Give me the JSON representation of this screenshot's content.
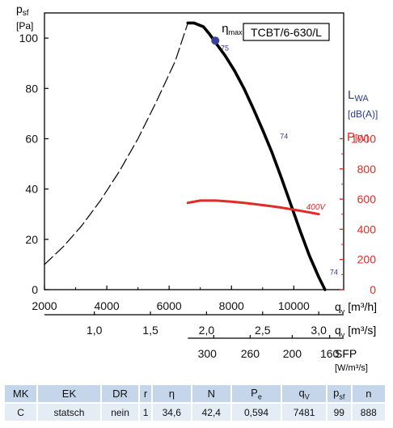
{
  "chart_data": {
    "type": "line",
    "model_label": "TCBT/6-630/L",
    "y_axis": {
      "symbol": "p",
      "subscript": "sf",
      "unit": "[Pa]",
      "range": [
        0,
        110
      ],
      "ticks": [
        "0",
        "20",
        "40",
        "60",
        "80",
        "100"
      ]
    },
    "x_axis_flow_m3h": {
      "symbol": "q",
      "subscript": "v",
      "unit": "[m³/h]",
      "range": [
        2000,
        11600
      ],
      "ticks": [
        "2000",
        "4000",
        "6000",
        "8000",
        "10000"
      ]
    },
    "x_axis_flow_m3s": {
      "symbol": "q",
      "subscript": "v",
      "unit": "[m³/s]",
      "ticks": [
        {
          "label": "1,0",
          "value": 1.0
        },
        {
          "label": "1,5",
          "value": 1.5
        },
        {
          "label": "2,0",
          "value": 2.0
        },
        {
          "label": "2,5",
          "value": 2.5
        },
        {
          "label": "3,0",
          "value": 3.0
        }
      ]
    },
    "sfp_axis": {
      "label": "SFP",
      "unit": "[W/m³/s]",
      "ticks": [
        {
          "label": "300",
          "value": 300
        },
        {
          "label": "260",
          "value": 260
        },
        {
          "label": "200",
          "value": 200
        },
        {
          "label": "160",
          "value": 160
        }
      ],
      "tick_positions_m3h": [
        7430,
        8600,
        9950,
        11150
      ]
    },
    "sound_axis": {
      "label": "L",
      "subscript": "WA",
      "unit": "[dB(A)]"
    },
    "power_axis": {
      "label": "P",
      "unit": "[W]",
      "range": [
        0,
        1000
      ],
      "ticks": [
        "0",
        "200",
        "400",
        "600",
        "800",
        "1000"
      ]
    },
    "series": [
      {
        "name": "fan curve",
        "color": "#000000",
        "x": [
          6600,
          6800,
          7100,
          7300,
          7500,
          7800,
          8100,
          8400,
          8700,
          9000,
          9300,
          9600,
          9900,
          10200,
          10500,
          10800,
          11000
        ],
        "y": [
          106.0,
          106.0,
          104.5,
          101.5,
          98.0,
          93.0,
          87.0,
          80.0,
          72.0,
          63.5,
          54.5,
          44.5,
          34.0,
          23.5,
          13.5,
          5.0,
          0.0
        ]
      },
      {
        "name": "unstable region",
        "style": "dashed",
        "color": "#000000",
        "x": [
          2000,
          2600,
          3200,
          3800,
          4400,
          5000,
          5600,
          6200,
          6600
        ],
        "y": [
          10.0,
          17.0,
          25.5,
          35.5,
          47.0,
          60.0,
          75.0,
          91.0,
          106.0
        ]
      },
      {
        "name": "400V",
        "axis": "power",
        "color": "#e22a26",
        "x": [
          6600,
          7000,
          7500,
          8000,
          8500,
          9000,
          9500,
          10000,
          10500,
          10800
        ],
        "y": [
          575,
          590,
          590,
          583,
          573,
          560,
          547,
          530,
          512,
          500
        ]
      }
    ],
    "annotations": [
      {
        "type": "eta_max",
        "label": "η",
        "sub": "max",
        "x": 7481,
        "y": 99
      },
      {
        "type": "sound",
        "label": "75",
        "x": 7500,
        "y": 95
      },
      {
        "type": "sound",
        "label": "74",
        "x": 9400,
        "y": 60
      },
      {
        "type": "sound",
        "label": "74",
        "x": 11000,
        "y": 6
      },
      {
        "type": "power",
        "label": "400V",
        "x": 10400,
        "y": 530
      }
    ]
  },
  "spec_table": {
    "headers": [
      "MK",
      "EK",
      "DR",
      "r",
      "η",
      "N",
      "Pe",
      "qV",
      "psf",
      "n"
    ],
    "values": [
      "C",
      "statsch",
      "nein",
      "1",
      "34,6",
      "42,4",
      "0,594",
      "7481",
      "99",
      "888"
    ]
  }
}
